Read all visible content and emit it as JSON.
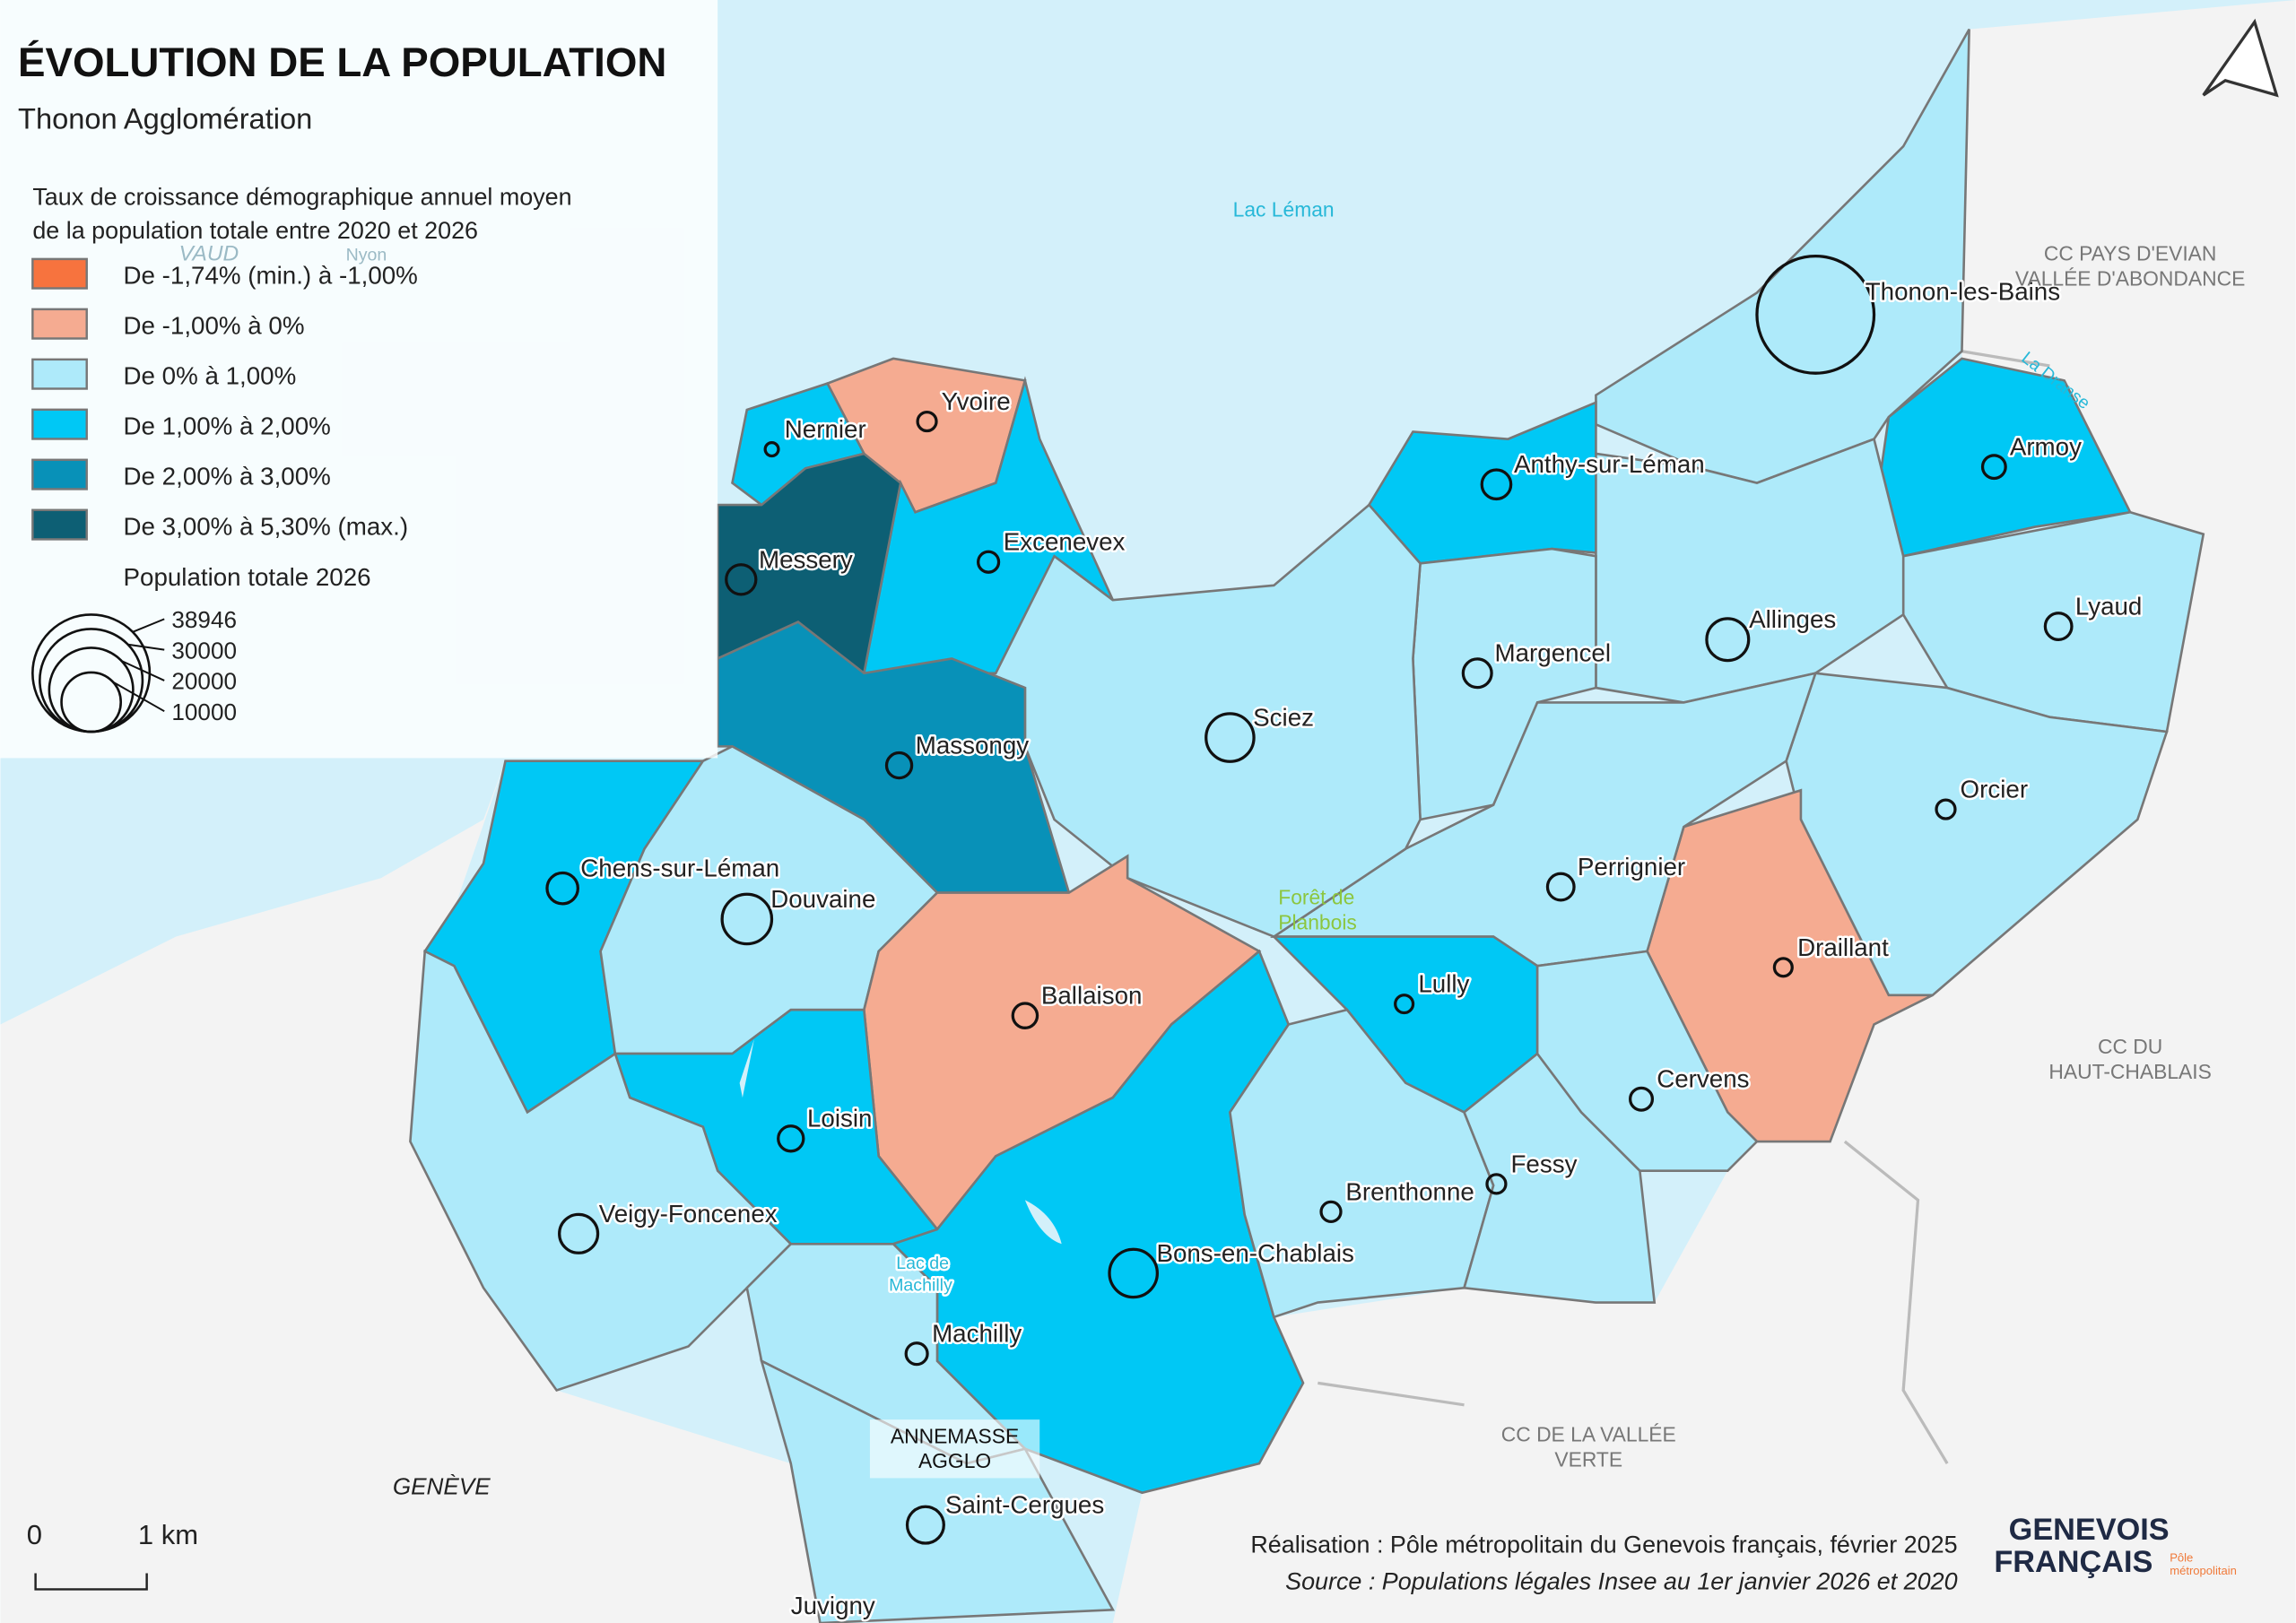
{
  "title": "ÉVOLUTION DE LA POPULATION",
  "subtitle": "Thonon Agglomération",
  "legend": {
    "title_lines": [
      "Taux de croissance démographique annuel moyen",
      "de la population totale entre 2020 et 2026"
    ],
    "classes": [
      {
        "label": "De -1,74% (min.) à -1,00%",
        "color": "#f7733e"
      },
      {
        "label": "De -1,00% à 0%",
        "color": "#f5ab91"
      },
      {
        "label": "De 0% à 1,00%",
        "color": "#aeeafa"
      },
      {
        "label": "De 1,00% à 2,00%",
        "color": "#00c8f5"
      },
      {
        "label": "De 2,00% à 3,00%",
        "color": "#0891b8"
      },
      {
        "label": "De 3,00% à 5,30% (max.)",
        "color": "#0d5f74"
      }
    ],
    "size_title": "Population totale 2026",
    "sizes": [
      38946,
      30000,
      20000,
      10000
    ]
  },
  "communes": [
    {
      "name": "Thonon-les-Bains",
      "class": 2,
      "population": 38946
    },
    {
      "name": "Armoy",
      "class": 3,
      "population": 1500
    },
    {
      "name": "Lyaud",
      "class": 2,
      "population": 2000
    },
    {
      "name": "Anthy-sur-Léman",
      "class": 3,
      "population": 2400
    },
    {
      "name": "Allinges",
      "class": 2,
      "population": 5000
    },
    {
      "name": "Margencel",
      "class": 2,
      "population": 2300
    },
    {
      "name": "Orcier",
      "class": 2,
      "population": 1000
    },
    {
      "name": "Draillant",
      "class": 1,
      "population": 900
    },
    {
      "name": "Perrignier",
      "class": 2,
      "population": 2000
    },
    {
      "name": "Sciez",
      "class": 2,
      "population": 6500
    },
    {
      "name": "Yvoire",
      "class": 1,
      "population": 1000
    },
    {
      "name": "Nernier",
      "class": 3,
      "population": 500
    },
    {
      "name": "Excenevex",
      "class": 3,
      "population": 1200
    },
    {
      "name": "Messery",
      "class": 5,
      "population": 2500
    },
    {
      "name": "Massongy",
      "class": 4,
      "population": 1800
    },
    {
      "name": "Chens-sur-Léman",
      "class": 3,
      "population": 2700
    },
    {
      "name": "Douvaine",
      "class": 2,
      "population": 7000
    },
    {
      "name": "Ballaison",
      "class": 1,
      "population": 1700
    },
    {
      "name": "Loisin",
      "class": 3,
      "population": 1800
    },
    {
      "name": "Veigy-Foncenex",
      "class": 2,
      "population": 4200
    },
    {
      "name": "Bons-en-Chablais",
      "class": 3,
      "population": 6500
    },
    {
      "name": "Lully",
      "class": 3,
      "population": 900
    },
    {
      "name": "Brenthonne",
      "class": 2,
      "population": 1100
    },
    {
      "name": "Fessy",
      "class": 2,
      "population": 1000
    },
    {
      "name": "Cervens",
      "class": 2,
      "population": 1400
    },
    {
      "name": "Machilly",
      "class": 2,
      "population": 1300
    },
    {
      "name": "Saint-Cergues",
      "class": 2,
      "population": 3800
    }
  ],
  "places": {
    "lake": "Lac Léman",
    "lake_machilly": [
      "Lac de",
      "Machilly"
    ],
    "forest": [
      "Forêt de",
      "Planbois"
    ],
    "river": "La Dranse",
    "vaud": "VAUD",
    "nyon": "Nyon",
    "evian": [
      "CC PAYS D'EVIAN",
      "VALLÉE D'ABONDANCE"
    ],
    "haut_chablais": [
      "CC DU",
      "HAUT-CHABLAIS"
    ],
    "vallee_verte": [
      "CC DE LA VALLÉE",
      "VERTE"
    ],
    "annemasse": [
      "ANNEMASSE",
      "AGGLO"
    ],
    "geneve": "GENÈVE",
    "juvigny": "Juvigny"
  },
  "scale": {
    "start": "0",
    "end": "1 km"
  },
  "credits": {
    "made_by": "Réalisation : Pôle métropolitain du Genevois français, février 2025",
    "source": "Source : Populations légales Insee au 1er janvier 2026 et 2020"
  },
  "logo": {
    "line1": "GENEVOIS",
    "line2": "FRANÇAIS",
    "tag1": "Pôle",
    "tag2": "métropolitain"
  }
}
